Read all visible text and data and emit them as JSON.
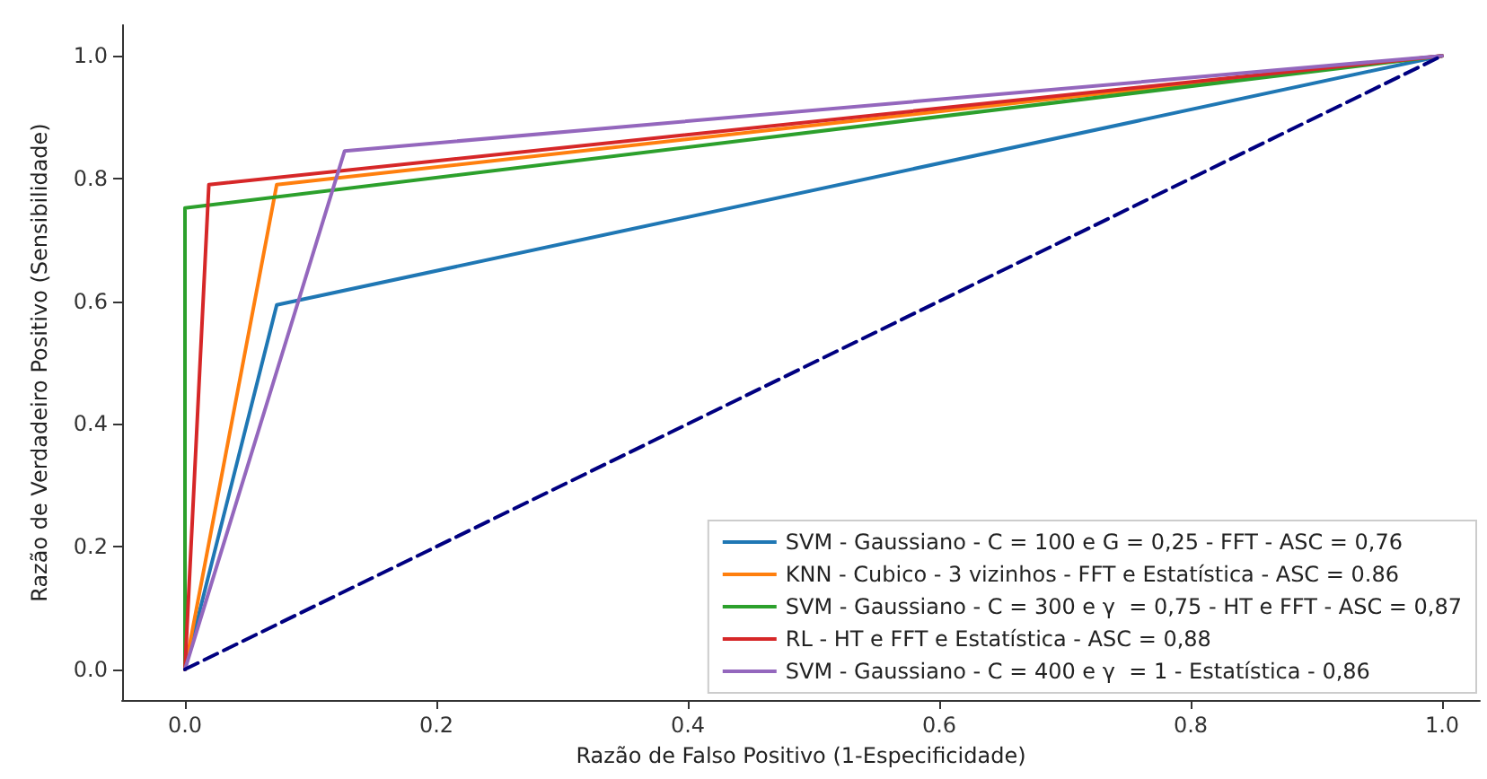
{
  "chart_data": {
    "type": "line",
    "xlabel": "Razão de Falso Positivo (1-Especificidade)",
    "ylabel": "Razão de Verdadeiro Positivo (Sensibilidade)",
    "xlim": [
      -0.05,
      1.03
    ],
    "ylim": [
      -0.05,
      1.05
    ],
    "xticks": [
      {
        "value": 0,
        "label": "0.0"
      },
      {
        "value": 0.2,
        "label": "0.2"
      },
      {
        "value": 0.4,
        "label": "0.4"
      },
      {
        "value": 0.6,
        "label": "0.6"
      },
      {
        "value": 0.8,
        "label": "0.8"
      },
      {
        "value": 1,
        "label": "1.0"
      }
    ],
    "yticks": [
      {
        "value": 0,
        "label": "0.0"
      },
      {
        "value": 0.2,
        "label": "0.2"
      },
      {
        "value": 0.4,
        "label": "0.4"
      },
      {
        "value": 0.6,
        "label": "0.6"
      },
      {
        "value": 0.8,
        "label": "0.8"
      },
      {
        "value": 1,
        "label": "1.0"
      }
    ],
    "grid": false,
    "legend": "bottom right",
    "marker": "none",
    "series": [
      {
        "name": "SVM - Gaussiano - C = 100 e G = 0,25 - FFT - ASC = 0,76",
        "color": "#1f77b4",
        "x": [
          0,
          0.073,
          1
        ],
        "values": [
          0,
          0.594,
          1
        ]
      },
      {
        "name": "KNN - Cubico - 3 vizinhos - FFT e Estatística - ASC = 0.86",
        "color": "#ff7f0e",
        "x": [
          0,
          0.073,
          1
        ],
        "values": [
          0,
          0.79,
          1
        ]
      },
      {
        "name": "SVM - Gaussiano - C = 300 e γ  = 0,75 - HT e FFT - ASC = 0,87",
        "color": "#2ca02c",
        "x": [
          0,
          0,
          1
        ],
        "values": [
          0,
          0.752,
          1
        ]
      },
      {
        "name": "RL - HT e FFT e Estatística - ASC = 0,88",
        "color": "#d62728",
        "x": [
          0,
          0.019,
          1
        ],
        "values": [
          0,
          0.79,
          1
        ]
      },
      {
        "name": "SVM - Gaussiano - C = 400 e γ  = 1 - Estatística - 0,86",
        "color": "#9467bd",
        "x": [
          0,
          0.127,
          1
        ],
        "values": [
          0,
          0.845,
          1
        ]
      },
      {
        "color": "#000080",
        "x": [
          0,
          1
        ],
        "values": [
          0,
          1
        ],
        "line_style": "dashed"
      }
    ]
  }
}
